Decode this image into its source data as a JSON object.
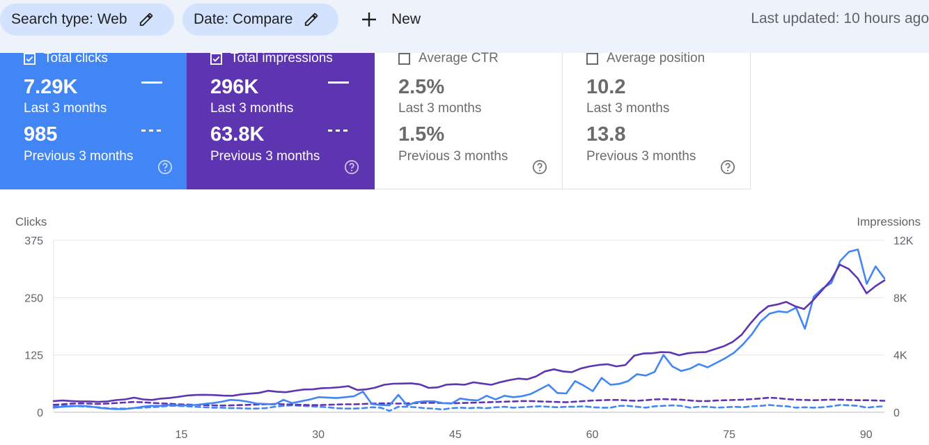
{
  "filters": {
    "search_type": "Search type: Web",
    "date": "Date: Compare",
    "new_label": "New"
  },
  "last_updated": "Last updated: 10 hours ago",
  "cards": [
    {
      "label": "Total clicks",
      "checked": true,
      "current": "7.29K",
      "current_period": "Last 3 months",
      "previous": "985",
      "previous_period": "Previous 3 months",
      "bg": "#4285f4"
    },
    {
      "label": "Total impressions",
      "checked": true,
      "current": "296K",
      "current_period": "Last 3 months",
      "previous": "63.8K",
      "previous_period": "Previous 3 months",
      "bg": "#5e35b1"
    },
    {
      "label": "Average CTR",
      "checked": false,
      "current": "2.5%",
      "current_period": "Last 3 months",
      "previous": "1.5%",
      "previous_period": "Previous 3 months",
      "bg": "#ffffff"
    },
    {
      "label": "Average position",
      "checked": false,
      "current": "10.2",
      "current_period": "Last 3 months",
      "previous": "13.8",
      "previous_period": "Previous 3 months",
      "bg": "#ffffff"
    }
  ],
  "colors": {
    "clicks": "#4285f4",
    "impressions": "#5e35b1",
    "grid": "#e6e6e6",
    "axis_text": "#5f6368"
  },
  "icons": [
    "pencil-icon",
    "plus-icon",
    "checkbox-icon",
    "help-icon"
  ],
  "chart_data": {
    "type": "line",
    "ylabel_left": "Clicks",
    "ylabel_right": "Impressions",
    "ylim_left": [
      0,
      375
    ],
    "ylim_right": [
      0,
      12000
    ],
    "left_ticks": [
      0,
      125,
      250,
      375
    ],
    "left_tick_labels": [
      "0",
      "125",
      "250",
      "375"
    ],
    "right_ticks": [
      0,
      4000,
      8000,
      12000
    ],
    "right_tick_labels": [
      "0",
      "4K",
      "8K",
      "12K"
    ],
    "xlim": [
      1,
      92
    ],
    "x_ticks": [
      15,
      30,
      45,
      60,
      75,
      90
    ],
    "x_tick_labels": [
      "15",
      "30",
      "45",
      "60",
      "75",
      "90"
    ],
    "grid": "horizontal",
    "series": [
      {
        "axis": "left",
        "style": "solid",
        "color": "#4285f4",
        "values": [
          10,
          12,
          13,
          14,
          13,
          10,
          8,
          7,
          7,
          9,
          12,
          14,
          14,
          16,
          15,
          15,
          16,
          18,
          20,
          23,
          27,
          26,
          23,
          19,
          18,
          17,
          27,
          20,
          24,
          28,
          33,
          32,
          31,
          33,
          35,
          45,
          18,
          16,
          15,
          38,
          15,
          22,
          24,
          24,
          20,
          19,
          30,
          27,
          26,
          36,
          28,
          36,
          33,
          35,
          40,
          50,
          60,
          42,
          41,
          68,
          58,
          46,
          75,
          60,
          62,
          68,
          83,
          80,
          88,
          125,
          100,
          90,
          95,
          105,
          98,
          108,
          118,
          130,
          148,
          170,
          198,
          215,
          220,
          218,
          228,
          182,
          252,
          270,
          282,
          330,
          350,
          355,
          280,
          318,
          292
        ]
      },
      {
        "axis": "left",
        "style": "dashed",
        "color": "#4285f4",
        "values": [
          12,
          14,
          14,
          13,
          12,
          11,
          9,
          8,
          8,
          9,
          10,
          11,
          12,
          14,
          14,
          13,
          12,
          11,
          10,
          10,
          9,
          9,
          8,
          8,
          9,
          12,
          14,
          15,
          14,
          13,
          12,
          11,
          9,
          8,
          8,
          9,
          11,
          10,
          3,
          12,
          12,
          11,
          9,
          8,
          6,
          9,
          10,
          9,
          10,
          9,
          11,
          12,
          10,
          11,
          12,
          13,
          12,
          11,
          12,
          12,
          13,
          11,
          10,
          10,
          14,
          14,
          12,
          10,
          13,
          14,
          15,
          14,
          10,
          12,
          12,
          10,
          11,
          12,
          11,
          13,
          14,
          16,
          14,
          13,
          10,
          11,
          10,
          11,
          13,
          16,
          15,
          14,
          10,
          12,
          13
        ]
      },
      {
        "axis": "right",
        "style": "solid",
        "color": "#5e35b1",
        "values": [
          780,
          820,
          780,
          760,
          760,
          730,
          760,
          850,
          900,
          1020,
          900,
          860,
          950,
          1000,
          1080,
          1170,
          1210,
          1220,
          1200,
          1160,
          1150,
          1250,
          1300,
          1350,
          1500,
          1430,
          1400,
          1500,
          1590,
          1600,
          1680,
          1700,
          1750,
          1820,
          1550,
          1600,
          1720,
          1920,
          1990,
          2000,
          2020,
          1950,
          1700,
          1740,
          1930,
          1960,
          1920,
          2090,
          2000,
          1920,
          2100,
          2240,
          2350,
          2300,
          2500,
          2850,
          3000,
          2850,
          2800,
          3050,
          3200,
          3300,
          3350,
          3200,
          3300,
          3950,
          4100,
          4120,
          4200,
          4180,
          3980,
          4120,
          4180,
          4200,
          4400,
          4600,
          4900,
          5400,
          6200,
          6900,
          7400,
          7520,
          7700,
          7400,
          7200,
          7800,
          8500,
          9200,
          10300,
          10000,
          9350,
          8300,
          8800,
          9200
        ]
      },
      {
        "axis": "right",
        "style": "dashed",
        "color": "#5e35b1",
        "values": [
          520,
          560,
          600,
          620,
          600,
          580,
          600,
          640,
          680,
          720,
          700,
          660,
          620,
          600,
          560,
          540,
          520,
          500,
          480,
          470,
          480,
          500,
          520,
          540,
          560,
          580,
          560,
          540,
          520,
          500,
          500,
          520,
          540,
          560,
          560,
          580,
          600,
          620,
          620,
          600,
          620,
          640,
          660,
          660,
          640,
          620,
          640,
          660,
          680,
          700,
          720,
          740,
          760,
          780,
          780,
          760,
          740,
          720,
          700,
          740,
          780,
          820,
          840,
          860,
          860,
          820,
          800,
          840,
          900,
          920,
          900,
          880,
          820,
          780,
          780,
          820,
          840,
          860,
          880,
          920,
          960,
          1020,
          980,
          920,
          880,
          860,
          840,
          860,
          880,
          880,
          860,
          840,
          840,
          820,
          800
        ]
      }
    ]
  }
}
